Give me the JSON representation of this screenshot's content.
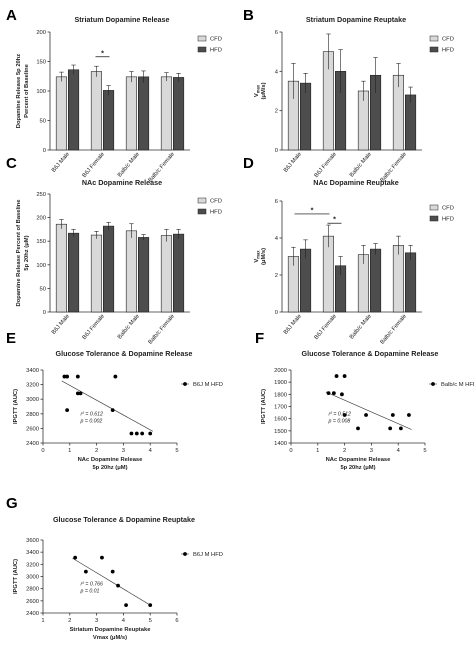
{
  "colors": {
    "cfd": "#d9d9d9",
    "hfd": "#4d4d4d",
    "axis": "#333333",
    "point": "#000000"
  },
  "chart_data": [
    {
      "panel": "A",
      "type": "bar",
      "title": "Striatum Dopamine Release",
      "ylabel_lines": [
        "Dopamine Release 5p 20hz",
        "Percent of Baseline"
      ],
      "categories": [
        "B6J Male",
        "B6J Female",
        "Balb/c Male",
        "Balb/c Female"
      ],
      "ylim": [
        0,
        200
      ],
      "yticks": [
        0,
        50,
        100,
        150,
        200
      ],
      "series": [
        {
          "name": "CFD",
          "values": [
            124,
            133,
            124,
            124
          ],
          "errors": [
            8,
            9,
            9,
            7
          ]
        },
        {
          "name": "HFD",
          "values": [
            136,
            101,
            124,
            123
          ],
          "errors": [
            8,
            8,
            10,
            7
          ]
        }
      ],
      "significance": [
        {
          "category": 1,
          "label": "*"
        }
      ]
    },
    {
      "panel": "B",
      "type": "bar",
      "title": "Striatum Dopamine Reuptake",
      "ylabel_main": "V",
      "ylabel_sub": "max",
      "ylabel_unit": "(μM/s)",
      "categories": [
        "B6J Male",
        "B6J Female",
        "Balb/c Male",
        "Balb/c Female"
      ],
      "ylim": [
        0,
        6
      ],
      "yticks": [
        0,
        2,
        4,
        6
      ],
      "series": [
        {
          "name": "CFD",
          "values": [
            3.5,
            5.0,
            3.0,
            3.8
          ],
          "errors": [
            0.9,
            0.9,
            0.5,
            0.6
          ]
        },
        {
          "name": "HFD",
          "values": [
            3.4,
            4.0,
            3.8,
            2.8
          ],
          "errors": [
            0.5,
            1.1,
            0.9,
            0.4
          ]
        }
      ],
      "significance": []
    },
    {
      "panel": "C",
      "type": "bar",
      "title": "NAc Dopamine Release",
      "ylabel_lines": [
        "Dopamine Release Percent of Baseline",
        "5p 20hz (μM)"
      ],
      "categories": [
        "B6J Male",
        "B6J Female",
        "Balb/c Male",
        "Balb/c Female"
      ],
      "ylim": [
        0,
        250
      ],
      "yticks": [
        0,
        50,
        100,
        150,
        200,
        250
      ],
      "series": [
        {
          "name": "CFD",
          "values": [
            186,
            163,
            172,
            162
          ],
          "errors": [
            10,
            8,
            15,
            13
          ]
        },
        {
          "name": "HFD",
          "values": [
            167,
            182,
            158,
            165
          ],
          "errors": [
            8,
            8,
            6,
            10
          ]
        }
      ],
      "significance": []
    },
    {
      "panel": "D",
      "type": "bar",
      "title": "NAc Dopamine Reuptake",
      "ylabel_main": "V",
      "ylabel_sub": "max",
      "ylabel_unit": "(μM/s)",
      "categories": [
        "B6J Male",
        "B6J Female",
        "Balb/c Male",
        "Balb/c Female"
      ],
      "ylim": [
        0,
        6
      ],
      "yticks": [
        0,
        2,
        4,
        6
      ],
      "series": [
        {
          "name": "CFD",
          "values": [
            3.0,
            4.1,
            3.1,
            3.6
          ],
          "errors": [
            0.5,
            0.6,
            0.5,
            0.5
          ]
        },
        {
          "name": "HFD",
          "values": [
            3.4,
            2.5,
            3.4,
            3.2
          ],
          "errors": [
            0.5,
            0.5,
            0.3,
            0.4
          ]
        }
      ],
      "significance": [
        {
          "from": 0,
          "to": 1,
          "label": "*",
          "level": 5.3
        },
        {
          "category": 1,
          "label": "*",
          "level": 4.8
        }
      ]
    },
    {
      "panel": "E",
      "type": "scatter",
      "title": "Glucose Tolerance & Dopamine Release",
      "xlabel_lines": [
        "NAc Dopamine Release",
        "5p 20hz (μM)"
      ],
      "ylabel": "IPGTT (AUC)",
      "xlim": [
        0,
        5
      ],
      "ylim": [
        2400,
        3400
      ],
      "xticks": [
        0,
        1,
        2,
        3,
        4,
        5
      ],
      "yticks": [
        2400,
        2600,
        2800,
        3000,
        3200,
        3400
      ],
      "legend": "B6J M HFD",
      "points": [
        [
          0.8,
          3310
        ],
        [
          0.9,
          3310
        ],
        [
          1.3,
          3310
        ],
        [
          0.9,
          2850
        ],
        [
          1.3,
          3080
        ],
        [
          1.4,
          3080
        ],
        [
          2.7,
          3310
        ],
        [
          2.6,
          2850
        ],
        [
          3.3,
          2530
        ],
        [
          3.5,
          2530
        ],
        [
          3.7,
          2530
        ],
        [
          4.0,
          2530
        ]
      ],
      "fit": [
        [
          0.7,
          3250
        ],
        [
          4.1,
          2560
        ]
      ],
      "r2_label": "r² = 0.612",
      "p_label": "p = 0.002"
    },
    {
      "panel": "F",
      "type": "scatter",
      "title": "Glucose Tolerance & Dopamine Release",
      "xlabel_lines": [
        "NAc Dopamine Release",
        "5p 20hz (μM)"
      ],
      "ylabel": "IPGTT (AUC)",
      "xlim": [
        0,
        5
      ],
      "ylim": [
        1400,
        2000
      ],
      "xticks": [
        0,
        1,
        2,
        3,
        4,
        5
      ],
      "yticks": [
        1400,
        1500,
        1600,
        1700,
        1800,
        1900,
        2000
      ],
      "legend": "Balb/c M HFD",
      "points": [
        [
          1.4,
          1810
        ],
        [
          1.6,
          1810
        ],
        [
          1.7,
          1950
        ],
        [
          1.9,
          1800
        ],
        [
          2.0,
          1950
        ],
        [
          2.0,
          1630
        ],
        [
          2.5,
          1520
        ],
        [
          2.8,
          1630
        ],
        [
          3.7,
          1520
        ],
        [
          3.8,
          1630
        ],
        [
          4.1,
          1520
        ],
        [
          4.4,
          1630
        ]
      ],
      "fit": [
        [
          1.3,
          1820
        ],
        [
          4.5,
          1510
        ]
      ],
      "r2_label": "r² = 0.512",
      "p_label": "p = 0.008"
    },
    {
      "panel": "G",
      "type": "scatter",
      "title": "Glucose Tolerance & Dopamine Reuptake",
      "xlabel_lines": [
        "Striatum Dopamine Reuptake",
        "Vmax (μM/s)"
      ],
      "ylabel": "IPGTT (AUC)",
      "xlim": [
        1,
        6
      ],
      "ylim": [
        2400,
        3600
      ],
      "xticks": [
        1,
        2,
        3,
        4,
        5,
        6
      ],
      "yticks": [
        2400,
        2600,
        2800,
        3000,
        3200,
        3400,
        3600
      ],
      "legend": "B6J M HFD",
      "points": [
        [
          2.2,
          3310
        ],
        [
          2.6,
          3080
        ],
        [
          3.2,
          3310
        ],
        [
          3.6,
          3080
        ],
        [
          3.8,
          2850
        ],
        [
          4.1,
          2530
        ],
        [
          5.0,
          2530
        ]
      ],
      "fit": [
        [
          2.1,
          3300
        ],
        [
          5.0,
          2530
        ]
      ],
      "r2_label": "r² = 0.766",
      "p_label": "p = 0.01"
    }
  ]
}
